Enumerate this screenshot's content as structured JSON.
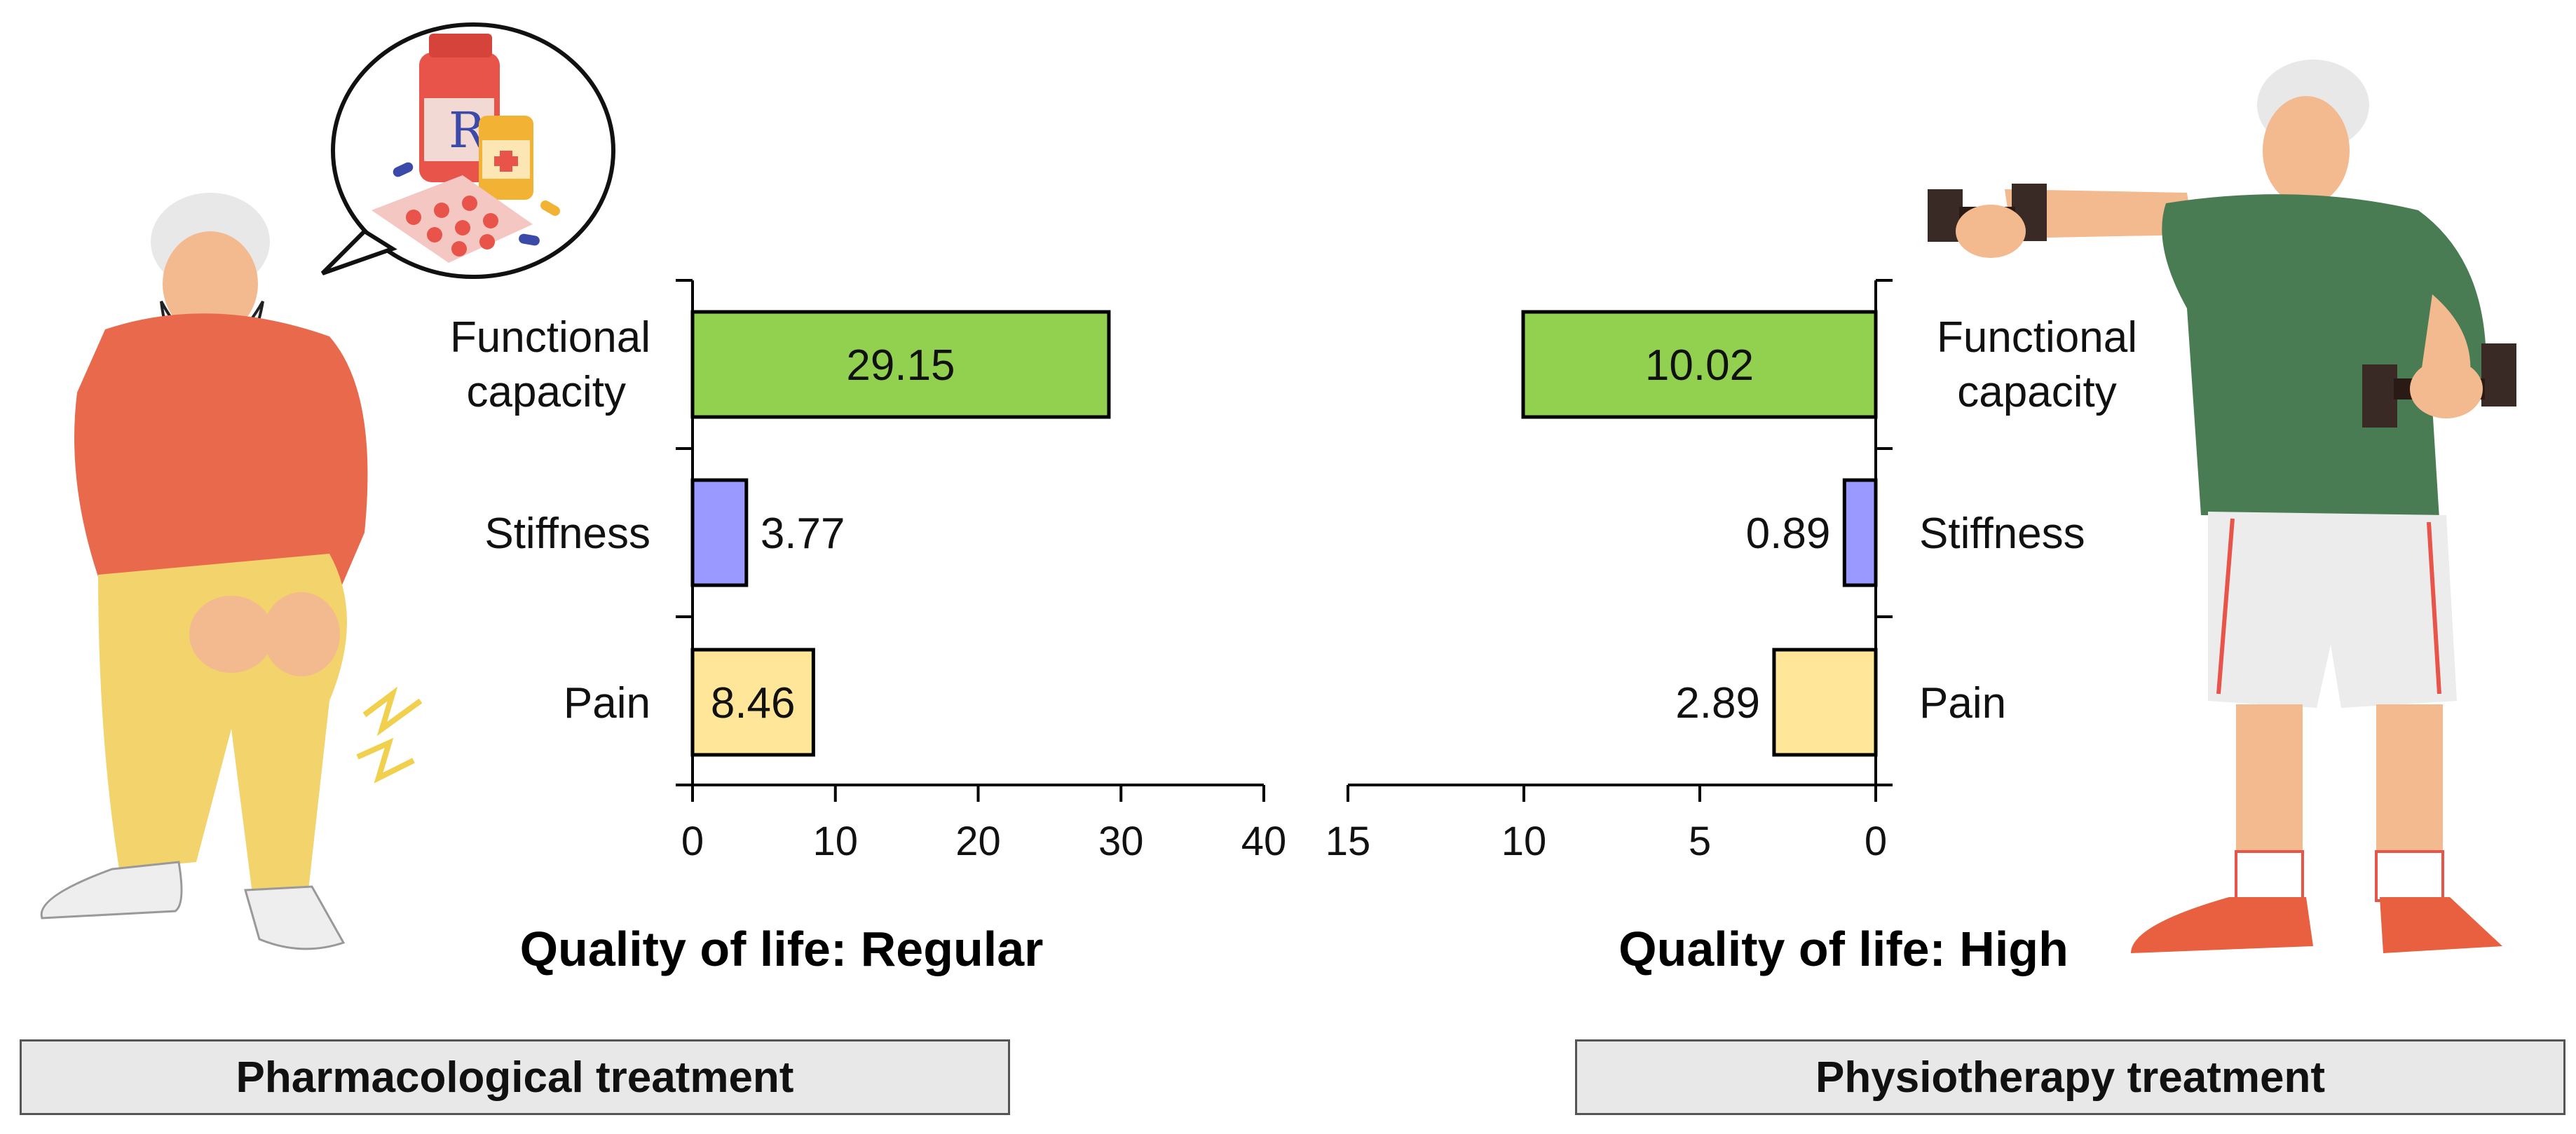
{
  "chart_data": [
    {
      "type": "bar",
      "orientation": "horizontal",
      "categories": [
        "Functional capacity",
        "Stiffness",
        "Pain"
      ],
      "values": [
        29.15,
        3.77,
        8.46
      ],
      "value_labels": [
        "29.15",
        "3.77",
        "8.46"
      ],
      "colors": [
        "#92d050",
        "#9999ff",
        "#ffe699"
      ],
      "xlim": [
        0,
        40
      ],
      "xticks": [
        "0",
        "10",
        "20",
        "30",
        "40"
      ],
      "subtitle": "Quality of life: Regular",
      "treatment": "Pharmacological treatment"
    },
    {
      "type": "bar",
      "orientation": "horizontal",
      "reversed_x": true,
      "categories": [
        "Functional capacity",
        "Stiffness",
        "Pain"
      ],
      "values": [
        10.02,
        0.89,
        2.89
      ],
      "value_labels": [
        "10.02",
        "0.89",
        "2.89"
      ],
      "colors": [
        "#92d050",
        "#9999ff",
        "#ffe699"
      ],
      "xlim": [
        0,
        15
      ],
      "xticks": [
        "15",
        "10",
        "5",
        "0"
      ],
      "subtitle": "Quality of life: High",
      "treatment": "Physiotherapy treatment"
    }
  ],
  "illustrations": {
    "left": [
      "elderly-man-knee-pain-illustration",
      "medication-speech-bubble-illustration"
    ],
    "right": [
      "elderly-man-exercising-dumbbells-illustration"
    ]
  }
}
